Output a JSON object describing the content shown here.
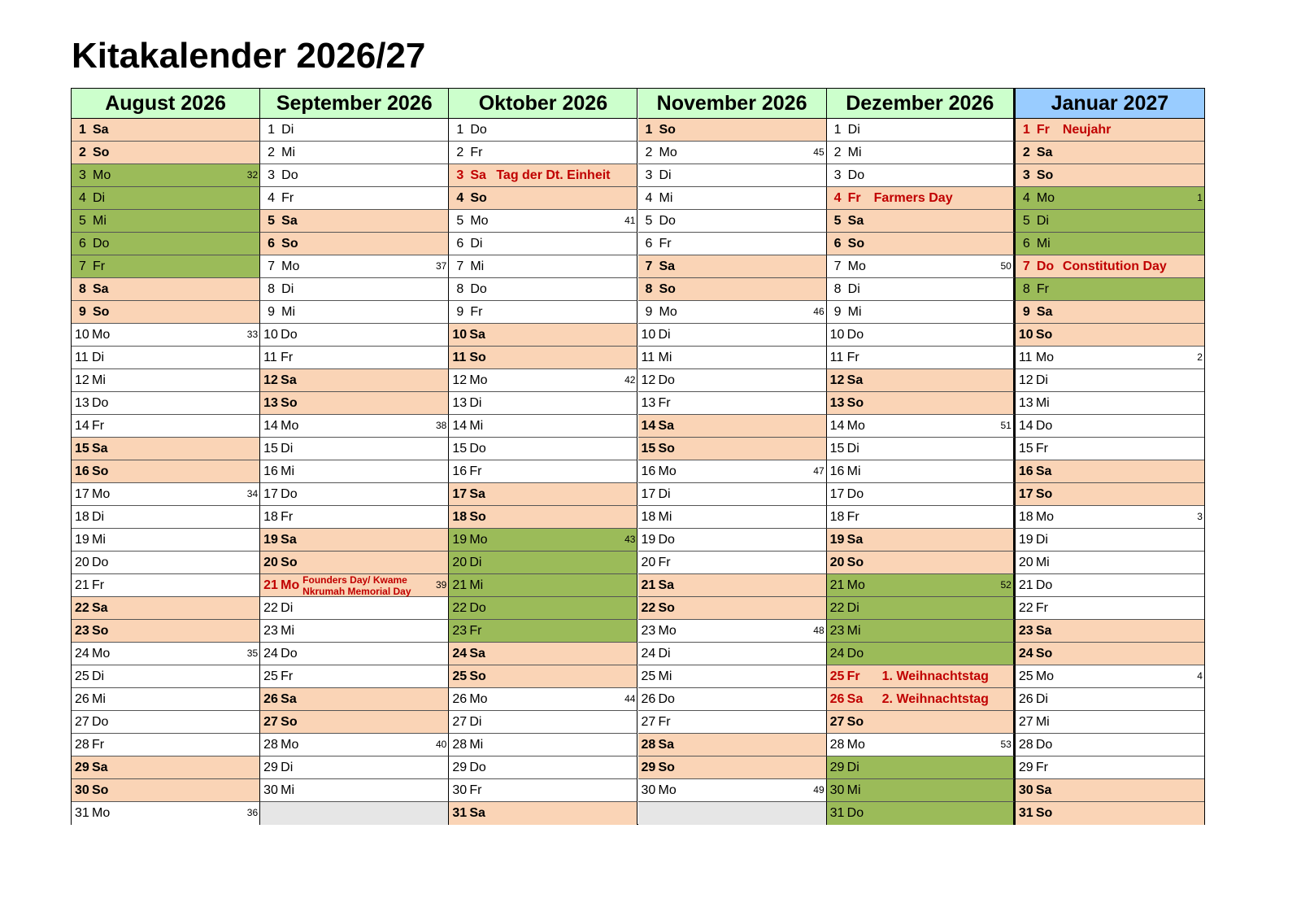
{
  "title": "Kitakalender 2026/27",
  "empty_fill": "#e6e6e6",
  "styles": {
    "we": {
      "bg": "#fad4b6",
      "bold": true
    },
    "va": {
      "bg": "#9bbb59",
      "bold": false
    },
    "ho": {
      "bg": "#fad4b6",
      "bold": true,
      "red": true
    }
  },
  "months": [
    {
      "name": "August 2026",
      "header_color": "#ccffcc",
      "days": [
        {
          "n": 1,
          "wd": "Sa",
          "s": "we"
        },
        {
          "n": 2,
          "wd": "So",
          "s": "we"
        },
        {
          "n": 3,
          "wd": "Mo",
          "s": "va",
          "kw": 32
        },
        {
          "n": 4,
          "wd": "Di",
          "s": "va"
        },
        {
          "n": 5,
          "wd": "Mi",
          "s": "va"
        },
        {
          "n": 6,
          "wd": "Do",
          "s": "va"
        },
        {
          "n": 7,
          "wd": "Fr",
          "s": "va"
        },
        {
          "n": 8,
          "wd": "Sa",
          "s": "we"
        },
        {
          "n": 9,
          "wd": "So",
          "s": "we"
        },
        {
          "n": 10,
          "wd": "Mo",
          "kw": 33
        },
        {
          "n": 11,
          "wd": "Di"
        },
        {
          "n": 12,
          "wd": "Mi"
        },
        {
          "n": 13,
          "wd": "Do"
        },
        {
          "n": 14,
          "wd": "Fr"
        },
        {
          "n": 15,
          "wd": "Sa",
          "s": "we"
        },
        {
          "n": 16,
          "wd": "So",
          "s": "we"
        },
        {
          "n": 17,
          "wd": "Mo",
          "kw": 34
        },
        {
          "n": 18,
          "wd": "Di"
        },
        {
          "n": 19,
          "wd": "Mi"
        },
        {
          "n": 20,
          "wd": "Do"
        },
        {
          "n": 21,
          "wd": "Fr"
        },
        {
          "n": 22,
          "wd": "Sa",
          "s": "we"
        },
        {
          "n": 23,
          "wd": "So",
          "s": "we"
        },
        {
          "n": 24,
          "wd": "Mo",
          "kw": 35
        },
        {
          "n": 25,
          "wd": "Di"
        },
        {
          "n": 26,
          "wd": "Mi"
        },
        {
          "n": 27,
          "wd": "Do"
        },
        {
          "n": 28,
          "wd": "Fr"
        },
        {
          "n": 29,
          "wd": "Sa",
          "s": "we"
        },
        {
          "n": 30,
          "wd": "So",
          "s": "we"
        },
        {
          "n": 31,
          "wd": "Mo",
          "kw": 36
        }
      ]
    },
    {
      "name": "September 2026",
      "header_color": "#ccffcc",
      "days": [
        {
          "n": 1,
          "wd": "Di"
        },
        {
          "n": 2,
          "wd": "Mi"
        },
        {
          "n": 3,
          "wd": "Do"
        },
        {
          "n": 4,
          "wd": "Fr"
        },
        {
          "n": 5,
          "wd": "Sa",
          "s": "we"
        },
        {
          "n": 6,
          "wd": "So",
          "s": "we"
        },
        {
          "n": 7,
          "wd": "Mo",
          "kw": 37
        },
        {
          "n": 8,
          "wd": "Di"
        },
        {
          "n": 9,
          "wd": "Mi"
        },
        {
          "n": 10,
          "wd": "Do"
        },
        {
          "n": 11,
          "wd": "Fr"
        },
        {
          "n": 12,
          "wd": "Sa",
          "s": "we"
        },
        {
          "n": 13,
          "wd": "So",
          "s": "we"
        },
        {
          "n": 14,
          "wd": "Mo",
          "kw": 38
        },
        {
          "n": 15,
          "wd": "Di"
        },
        {
          "n": 16,
          "wd": "Mi"
        },
        {
          "n": 17,
          "wd": "Do"
        },
        {
          "n": 18,
          "wd": "Fr"
        },
        {
          "n": 19,
          "wd": "Sa",
          "s": "we"
        },
        {
          "n": 20,
          "wd": "So",
          "s": "we"
        },
        {
          "n": 21,
          "wd": "Mo",
          "s": "ho",
          "kw": 39,
          "holiday": "Founders Day/ Kwame Nkrumah Memorial Day"
        },
        {
          "n": 22,
          "wd": "Di"
        },
        {
          "n": 23,
          "wd": "Mi"
        },
        {
          "n": 24,
          "wd": "Do"
        },
        {
          "n": 25,
          "wd": "Fr"
        },
        {
          "n": 26,
          "wd": "Sa",
          "s": "we"
        },
        {
          "n": 27,
          "wd": "So",
          "s": "we"
        },
        {
          "n": 28,
          "wd": "Mo",
          "kw": 40
        },
        {
          "n": 29,
          "wd": "Di"
        },
        {
          "n": 30,
          "wd": "Mi"
        }
      ]
    },
    {
      "name": "Oktober 2026",
      "header_color": "#ccffcc",
      "days": [
        {
          "n": 1,
          "wd": "Do"
        },
        {
          "n": 2,
          "wd": "Fr"
        },
        {
          "n": 3,
          "wd": "Sa",
          "s": "ho",
          "holiday": "Tag der Dt. Einheit"
        },
        {
          "n": 4,
          "wd": "So",
          "s": "we"
        },
        {
          "n": 5,
          "wd": "Mo",
          "kw": 41
        },
        {
          "n": 6,
          "wd": "Di"
        },
        {
          "n": 7,
          "wd": "Mi"
        },
        {
          "n": 8,
          "wd": "Do"
        },
        {
          "n": 9,
          "wd": "Fr"
        },
        {
          "n": 10,
          "wd": "Sa",
          "s": "we"
        },
        {
          "n": 11,
          "wd": "So",
          "s": "we"
        },
        {
          "n": 12,
          "wd": "Mo",
          "kw": 42
        },
        {
          "n": 13,
          "wd": "Di"
        },
        {
          "n": 14,
          "wd": "Mi"
        },
        {
          "n": 15,
          "wd": "Do"
        },
        {
          "n": 16,
          "wd": "Fr"
        },
        {
          "n": 17,
          "wd": "Sa",
          "s": "we"
        },
        {
          "n": 18,
          "wd": "So",
          "s": "we"
        },
        {
          "n": 19,
          "wd": "Mo",
          "s": "va",
          "kw": 43
        },
        {
          "n": 20,
          "wd": "Di",
          "s": "va"
        },
        {
          "n": 21,
          "wd": "Mi",
          "s": "va"
        },
        {
          "n": 22,
          "wd": "Do",
          "s": "va"
        },
        {
          "n": 23,
          "wd": "Fr",
          "s": "va"
        },
        {
          "n": 24,
          "wd": "Sa",
          "s": "we"
        },
        {
          "n": 25,
          "wd": "So",
          "s": "we"
        },
        {
          "n": 26,
          "wd": "Mo",
          "kw": 44
        },
        {
          "n": 27,
          "wd": "Di"
        },
        {
          "n": 28,
          "wd": "Mi"
        },
        {
          "n": 29,
          "wd": "Do"
        },
        {
          "n": 30,
          "wd": "Fr"
        },
        {
          "n": 31,
          "wd": "Sa",
          "s": "we"
        }
      ]
    },
    {
      "name": "November 2026",
      "header_color": "#ccffcc",
      "days": [
        {
          "n": 1,
          "wd": "So",
          "s": "we"
        },
        {
          "n": 2,
          "wd": "Mo",
          "kw": 45
        },
        {
          "n": 3,
          "wd": "Di"
        },
        {
          "n": 4,
          "wd": "Mi"
        },
        {
          "n": 5,
          "wd": "Do"
        },
        {
          "n": 6,
          "wd": "Fr"
        },
        {
          "n": 7,
          "wd": "Sa",
          "s": "we"
        },
        {
          "n": 8,
          "wd": "So",
          "s": "we"
        },
        {
          "n": 9,
          "wd": "Mo",
          "kw": 46
        },
        {
          "n": 10,
          "wd": "Di"
        },
        {
          "n": 11,
          "wd": "Mi"
        },
        {
          "n": 12,
          "wd": "Do"
        },
        {
          "n": 13,
          "wd": "Fr"
        },
        {
          "n": 14,
          "wd": "Sa",
          "s": "we"
        },
        {
          "n": 15,
          "wd": "So",
          "s": "we"
        },
        {
          "n": 16,
          "wd": "Mo",
          "kw": 47
        },
        {
          "n": 17,
          "wd": "Di"
        },
        {
          "n": 18,
          "wd": "Mi"
        },
        {
          "n": 19,
          "wd": "Do"
        },
        {
          "n": 20,
          "wd": "Fr"
        },
        {
          "n": 21,
          "wd": "Sa",
          "s": "we"
        },
        {
          "n": 22,
          "wd": "So",
          "s": "we"
        },
        {
          "n": 23,
          "wd": "Mo",
          "kw": 48
        },
        {
          "n": 24,
          "wd": "Di"
        },
        {
          "n": 25,
          "wd": "Mi"
        },
        {
          "n": 26,
          "wd": "Do"
        },
        {
          "n": 27,
          "wd": "Fr"
        },
        {
          "n": 28,
          "wd": "Sa",
          "s": "we"
        },
        {
          "n": 29,
          "wd": "So",
          "s": "we"
        },
        {
          "n": 30,
          "wd": "Mo",
          "kw": 49
        }
      ]
    },
    {
      "name": "Dezember 2026",
      "header_color": "#ccffcc",
      "days": [
        {
          "n": 1,
          "wd": "Di"
        },
        {
          "n": 2,
          "wd": "Mi"
        },
        {
          "n": 3,
          "wd": "Do"
        },
        {
          "n": 4,
          "wd": "Fr",
          "s": "ho",
          "holiday": "Farmers Day"
        },
        {
          "n": 5,
          "wd": "Sa",
          "s": "we"
        },
        {
          "n": 6,
          "wd": "So",
          "s": "we"
        },
        {
          "n": 7,
          "wd": "Mo",
          "kw": 50
        },
        {
          "n": 8,
          "wd": "Di"
        },
        {
          "n": 9,
          "wd": "Mi"
        },
        {
          "n": 10,
          "wd": "Do"
        },
        {
          "n": 11,
          "wd": "Fr"
        },
        {
          "n": 12,
          "wd": "Sa",
          "s": "we"
        },
        {
          "n": 13,
          "wd": "So",
          "s": "we"
        },
        {
          "n": 14,
          "wd": "Mo",
          "kw": 51
        },
        {
          "n": 15,
          "wd": "Di"
        },
        {
          "n": 16,
          "wd": "Mi"
        },
        {
          "n": 17,
          "wd": "Do"
        },
        {
          "n": 18,
          "wd": "Fr"
        },
        {
          "n": 19,
          "wd": "Sa",
          "s": "we"
        },
        {
          "n": 20,
          "wd": "So",
          "s": "we"
        },
        {
          "n": 21,
          "wd": "Mo",
          "s": "va",
          "kw": 52
        },
        {
          "n": 22,
          "wd": "Di",
          "s": "va"
        },
        {
          "n": 23,
          "wd": "Mi",
          "s": "va"
        },
        {
          "n": 24,
          "wd": "Do",
          "s": "va"
        },
        {
          "n": 25,
          "wd": "Fr",
          "s": "ho",
          "holiday": "1. Weihnachtstag"
        },
        {
          "n": 26,
          "wd": "Sa",
          "s": "ho",
          "holiday": "2. Weihnachtstag"
        },
        {
          "n": 27,
          "wd": "So",
          "s": "we"
        },
        {
          "n": 28,
          "wd": "Mo",
          "kw": 53
        },
        {
          "n": 29,
          "wd": "Di",
          "s": "va"
        },
        {
          "n": 30,
          "wd": "Mi",
          "s": "va"
        },
        {
          "n": 31,
          "wd": "Do",
          "s": "va"
        }
      ]
    },
    {
      "name": "Januar 2027",
      "header_color": "#99ccff",
      "days": [
        {
          "n": 1,
          "wd": "Fr",
          "s": "ho",
          "holiday": "Neujahr"
        },
        {
          "n": 2,
          "wd": "Sa",
          "s": "we"
        },
        {
          "n": 3,
          "wd": "So",
          "s": "we"
        },
        {
          "n": 4,
          "wd": "Mo",
          "s": "va",
          "kw": 1
        },
        {
          "n": 5,
          "wd": "Di",
          "s": "va"
        },
        {
          "n": 6,
          "wd": "Mi",
          "s": "va"
        },
        {
          "n": 7,
          "wd": "Do",
          "s": "ho",
          "holiday": "Constitution Day"
        },
        {
          "n": 8,
          "wd": "Fr",
          "s": "va"
        },
        {
          "n": 9,
          "wd": "Sa",
          "s": "we"
        },
        {
          "n": 10,
          "wd": "So",
          "s": "we"
        },
        {
          "n": 11,
          "wd": "Mo",
          "kw": 2
        },
        {
          "n": 12,
          "wd": "Di"
        },
        {
          "n": 13,
          "wd": "Mi"
        },
        {
          "n": 14,
          "wd": "Do"
        },
        {
          "n": 15,
          "wd": "Fr"
        },
        {
          "n": 16,
          "wd": "Sa",
          "s": "we"
        },
        {
          "n": 17,
          "wd": "So",
          "s": "we"
        },
        {
          "n": 18,
          "wd": "Mo",
          "kw": 3
        },
        {
          "n": 19,
          "wd": "Di"
        },
        {
          "n": 20,
          "wd": "Mi"
        },
        {
          "n": 21,
          "wd": "Do"
        },
        {
          "n": 22,
          "wd": "Fr"
        },
        {
          "n": 23,
          "wd": "Sa",
          "s": "we"
        },
        {
          "n": 24,
          "wd": "So",
          "s": "we"
        },
        {
          "n": 25,
          "wd": "Mo",
          "kw": 4
        },
        {
          "n": 26,
          "wd": "Di"
        },
        {
          "n": 27,
          "wd": "Mi"
        },
        {
          "n": 28,
          "wd": "Do"
        },
        {
          "n": 29,
          "wd": "Fr"
        },
        {
          "n": 30,
          "wd": "Sa",
          "s": "we"
        },
        {
          "n": 31,
          "wd": "So",
          "s": "we"
        }
      ]
    }
  ]
}
